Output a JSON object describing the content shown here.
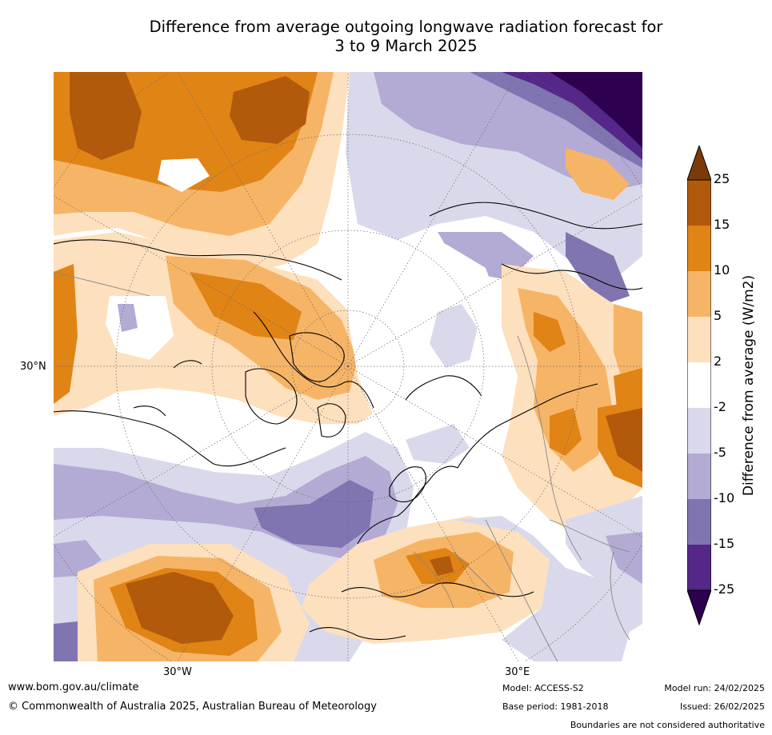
{
  "title": {
    "line1": "Difference from average outgoing longwave radiation forecast for",
    "line2": "3 to 9 March 2025"
  },
  "map": {
    "projection": "north-polar-stereographic",
    "labels": {
      "lat": "30°N",
      "lon_west": "30°W",
      "lon_east": "30°E"
    }
  },
  "colorbar": {
    "title": "Difference from average (W/m2)",
    "ticks": [
      "25",
      "15",
      "10",
      "5",
      "2",
      "-2",
      "-5",
      "-10",
      "-15",
      "-25"
    ],
    "colors": {
      "above_25": "#7a3a0a",
      "15_to_25": "#b25a0b",
      "10_to_15": "#e08416",
      "5_to_10": "#f6b466",
      "2_to_5": "#fde0bd",
      "neutral": "#ffffff",
      "m5_to_m2": "#d9d9eb",
      "m10_to_m5": "#b3abd4",
      "m15_to_m10": "#8075b0",
      "m25_to_m15": "#542788",
      "below_m25": "#2d0050"
    }
  },
  "footer": {
    "website": "www.bom.gov.au/climate",
    "copyright": "© Commonwealth of Australia 2025, Australian Bureau of Meteorology",
    "model": "Model: ACCESS-S2",
    "base_period": "Base period: 1981-2018",
    "model_run": "Model run: 24/02/2025",
    "issued": "Issued: 26/02/2025",
    "disclaimer": "Boundaries are not considered authoritative"
  }
}
